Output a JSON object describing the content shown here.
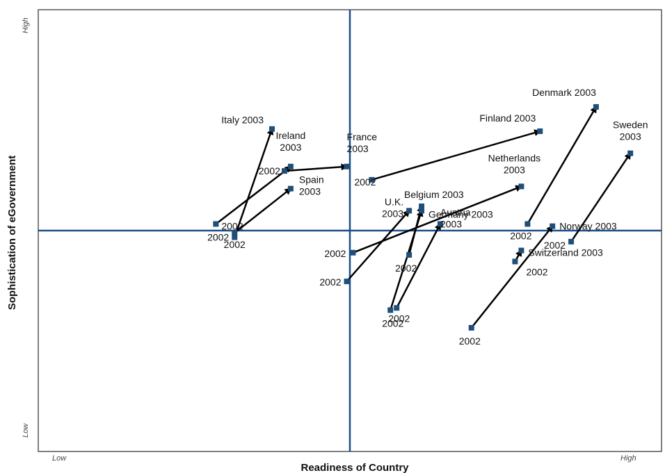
{
  "chart_data": {
    "type": "scatter",
    "xlabel": "Readiness of Country",
    "ylabel": "Sophistication of eGovernment",
    "x_tick_labels": {
      "low": "Low",
      "high": "High"
    },
    "y_tick_labels": {
      "low": "Low",
      "high": "High"
    },
    "xlim": [
      0,
      100
    ],
    "ylim": [
      0,
      100
    ],
    "grid": false,
    "quadrant_lines": {
      "x": 50,
      "y": 50
    },
    "colors": {
      "marker": "#1f4e79",
      "arrow": "#000000",
      "axis_line": "#1a4f8a",
      "frame": "#555555"
    },
    "series": [
      {
        "name": "Italy",
        "p2002": [
          31.5,
          48.5
        ],
        "p2003": [
          37.5,
          73.0
        ],
        "label_2002": "2002",
        "label_2003": "Italy 2003"
      },
      {
        "name": "Ireland",
        "p2002": [
          28.5,
          51.5
        ],
        "p2003": [
          40.5,
          64.5
        ],
        "label_2002": "2002",
        "label_2003": "Ireland\n2003"
      },
      {
        "name": "Spain",
        "p2002": [
          31.5,
          49.5
        ],
        "p2003": [
          40.5,
          59.5
        ],
        "label_2002": "2002",
        "label_2003": "Spain\n2003"
      },
      {
        "name": "France",
        "p2002": [
          39.5,
          63.5
        ],
        "p2003": [
          49.5,
          64.5
        ],
        "label_2002": "2002",
        "label_2003": "France\n2003"
      },
      {
        "name": "Finland",
        "p2002": [
          53.5,
          61.5
        ],
        "p2003": [
          80.5,
          72.5
        ],
        "label_2002": "2002",
        "label_2003": "Finland 2003"
      },
      {
        "name": "Denmark",
        "p2002": [
          78.5,
          51.5
        ],
        "p2003": [
          89.5,
          78.0
        ],
        "label_2002": "2002",
        "label_2003": "Denmark 2003"
      },
      {
        "name": "Sweden",
        "p2002": [
          85.5,
          47.5
        ],
        "p2003": [
          95.0,
          67.5
        ],
        "label_2002": "2002",
        "label_2003": "Sweden\n2003"
      },
      {
        "name": "Netherlands",
        "p2002": [
          50.5,
          45.0
        ],
        "p2003": [
          77.5,
          60.0
        ],
        "label_2002": "2002",
        "label_2003": "Netherlands\n2003"
      },
      {
        "name": "Belgium",
        "p2002": [
          59.5,
          44.5
        ],
        "p2003": [
          61.5,
          55.5
        ],
        "label_2002": "2002",
        "label_2003": "Belgium 2003"
      },
      {
        "name": "U.K.",
        "p2002": [
          49.5,
          38.5
        ],
        "p2003": [
          59.5,
          54.5
        ],
        "label_2002": "2002",
        "label_2003": "U.K.\n2003"
      },
      {
        "name": "Germany",
        "p2002": [
          56.5,
          32.0
        ],
        "p2003": [
          61.5,
          54.5
        ],
        "label_2002": "2002",
        "label_2003": "Germany 2003"
      },
      {
        "name": "Austria",
        "p2002": [
          57.5,
          32.5
        ],
        "p2003": [
          64.5,
          51.5
        ],
        "label_2002": "2002",
        "label_2003": "Austria\n2003"
      },
      {
        "name": "Norway",
        "p2002": [
          69.5,
          28.0
        ],
        "p2003": [
          82.5,
          51.0
        ],
        "label_2002": "2002",
        "label_2003": "Norway 2003"
      },
      {
        "name": "Switzerland",
        "p2002": [
          76.5,
          43.0
        ],
        "p2003": [
          77.5,
          45.5
        ],
        "label_2002": "2002",
        "label_2003": "Switzerland 2003"
      }
    ],
    "annotations": [
      {
        "text": "2002",
        "x": 28.5,
        "y": 51.5,
        "ref": "Ireland 2002"
      },
      {
        "text": "2002",
        "x": 31.5,
        "y": 48.5,
        "ref": "Italy 2002"
      },
      {
        "text": "2002",
        "x": 31.5,
        "y": 46.5,
        "ref": "Spain 2002"
      },
      {
        "text": "2002",
        "x": 40.5,
        "y": 64.5,
        "ref": "France 2002"
      },
      {
        "text": "2002",
        "x": 53.5,
        "y": 61.5,
        "ref": "Finland 2002"
      },
      {
        "text": "2002",
        "x": 50.0,
        "y": 47.5,
        "ref": "Netherlands 2002"
      },
      {
        "text": "2002",
        "x": 49.5,
        "y": 44.5,
        "ref": "Belgium 2002"
      },
      {
        "text": "2002",
        "x": 49.5,
        "y": 38.5,
        "ref": "U.K. 2002"
      },
      {
        "text": "2002",
        "x": 59.5,
        "y": 44.5,
        "ref": "Germany 2002"
      },
      {
        "text": "2002",
        "x": 57.5,
        "y": 32.5,
        "ref": "Austria 2002"
      },
      {
        "text": "2002",
        "x": 78.5,
        "y": 51.5,
        "ref": "Denmark 2002"
      },
      {
        "text": "2002",
        "x": 85.5,
        "y": 47.5,
        "ref": "Sweden 2002"
      },
      {
        "text": "2002",
        "x": 76.5,
        "y": 43.0,
        "ref": "Switzerland 2002"
      },
      {
        "text": "2002",
        "x": 69.5,
        "y": 28.0,
        "ref": "Norway 2002"
      }
    ]
  }
}
